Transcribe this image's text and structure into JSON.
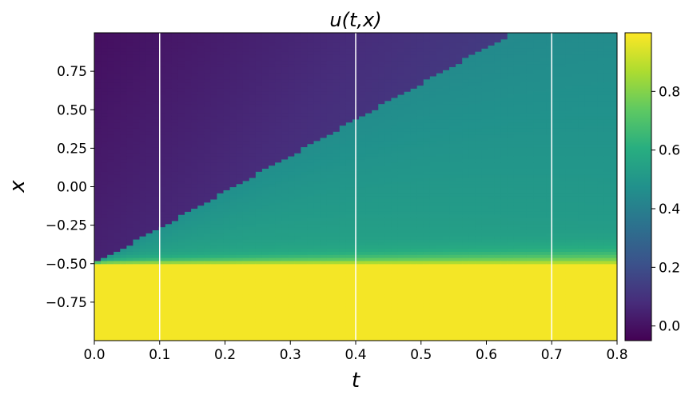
{
  "chart_data": {
    "type": "heatmap",
    "title": "u(t,x)",
    "xlabel": "t",
    "ylabel": "x",
    "xlim": [
      0.0,
      0.8
    ],
    "ylim": [
      -1.0,
      1.0
    ],
    "x_ticks": [
      "0.0",
      "0.1",
      "0.2",
      "0.3",
      "0.4",
      "0.5",
      "0.6",
      "0.7",
      "0.8"
    ],
    "y_ticks": [
      {
        "value": 0.75,
        "label": "0.75"
      },
      {
        "value": 0.5,
        "label": "0.50"
      },
      {
        "value": 0.25,
        "label": "0.25"
      },
      {
        "value": 0.0,
        "label": "0.00"
      },
      {
        "value": -0.25,
        "label": "−0.25"
      },
      {
        "value": -0.5,
        "label": "−0.50"
      },
      {
        "value": -0.75,
        "label": "−0.75"
      }
    ],
    "colormap": "viridis",
    "color_range": [
      -0.05,
      1.0
    ],
    "colorbar_ticks": [
      {
        "value": 0.0,
        "label": "0.0"
      },
      {
        "value": 0.2,
        "label": "0.2"
      },
      {
        "value": 0.4,
        "label": "0.4"
      },
      {
        "value": 0.6,
        "label": "0.6"
      },
      {
        "value": 0.8,
        "label": "0.8"
      }
    ],
    "vertical_lines_t": [
      0.1,
      0.4,
      0.7
    ],
    "vertical_line_color": "#ffffff",
    "description_regions": {
      "lower_region_value": 0.98,
      "left_upper_region_value_range": [
        0.0,
        0.2
      ],
      "right_middle_region_value_range": [
        0.3,
        0.6
      ],
      "shock_front": {
        "t": [
          0.0,
          0.64
        ],
        "x": [
          -0.5,
          1.0
        ]
      }
    }
  }
}
